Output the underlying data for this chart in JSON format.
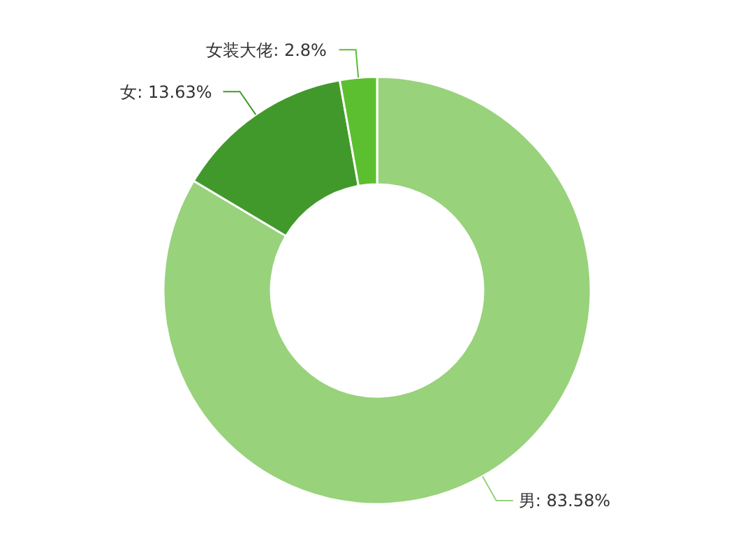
{
  "chart_data": {
    "type": "donut",
    "categories": [
      "男",
      "女",
      "女装大佬"
    ],
    "values": [
      83.58,
      13.63,
      2.8
    ],
    "value_labels": [
      ": 83.58%",
      ": 13.63%",
      ": 2.8%"
    ],
    "colors": [
      "#98d27b",
      "#42992b",
      "#5cbf2f"
    ],
    "legend": false
  }
}
